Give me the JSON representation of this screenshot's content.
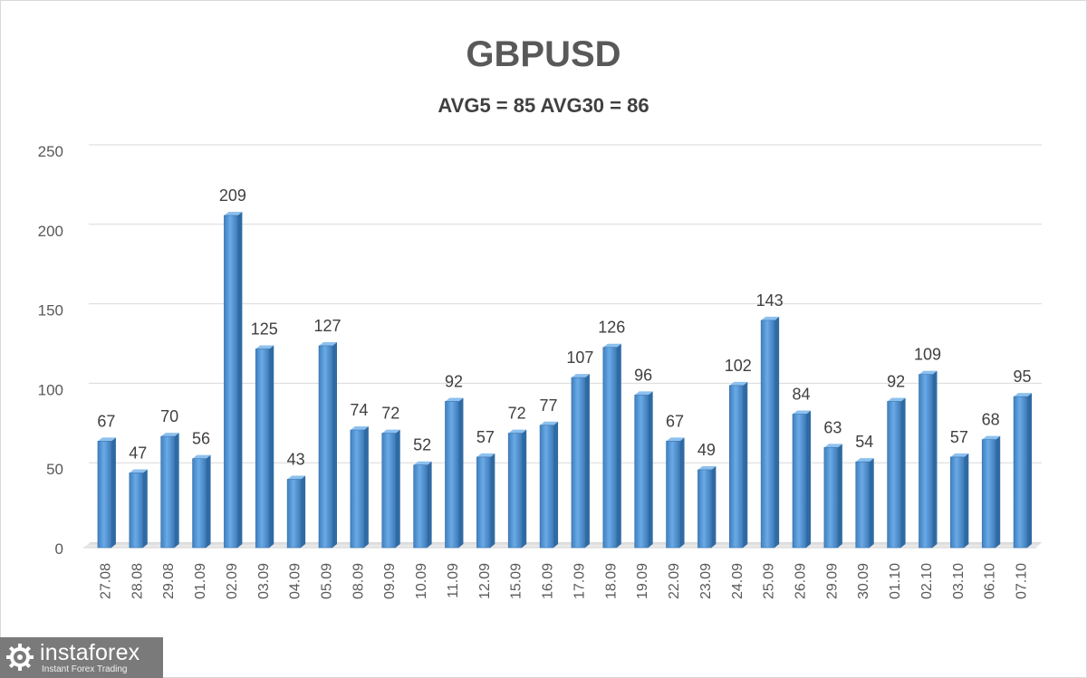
{
  "chart_data": {
    "type": "bar",
    "title": "GBPUSD",
    "subtitle": "AVG5 = 85 AVG30 = 86",
    "xlabel": "",
    "ylabel": "",
    "ylim": [
      0,
      250
    ],
    "yticks": [
      0,
      50,
      100,
      150,
      200,
      250
    ],
    "grid": true,
    "categories": [
      "27.08",
      "28.08",
      "29.08",
      "01.09",
      "02.09",
      "03.09",
      "04.09",
      "05.09",
      "08.09",
      "09.09",
      "10.09",
      "11.09",
      "12.09",
      "15.09",
      "16.09",
      "17.09",
      "18.09",
      "19.09",
      "22.09",
      "23.09",
      "24.09",
      "25.09",
      "26.09",
      "29.09",
      "30.09",
      "01.10",
      "02.10",
      "03.10",
      "06.10",
      "07.10"
    ],
    "values": [
      67,
      47,
      70,
      56,
      209,
      125,
      43,
      127,
      74,
      72,
      52,
      92,
      57,
      72,
      77,
      107,
      126,
      96,
      67,
      49,
      102,
      143,
      84,
      63,
      54,
      92,
      109,
      57,
      68,
      95
    ],
    "bar_color": "#5b9bd5"
  },
  "logo": {
    "name": "instaforex",
    "tagline": "Instant Forex Trading"
  }
}
